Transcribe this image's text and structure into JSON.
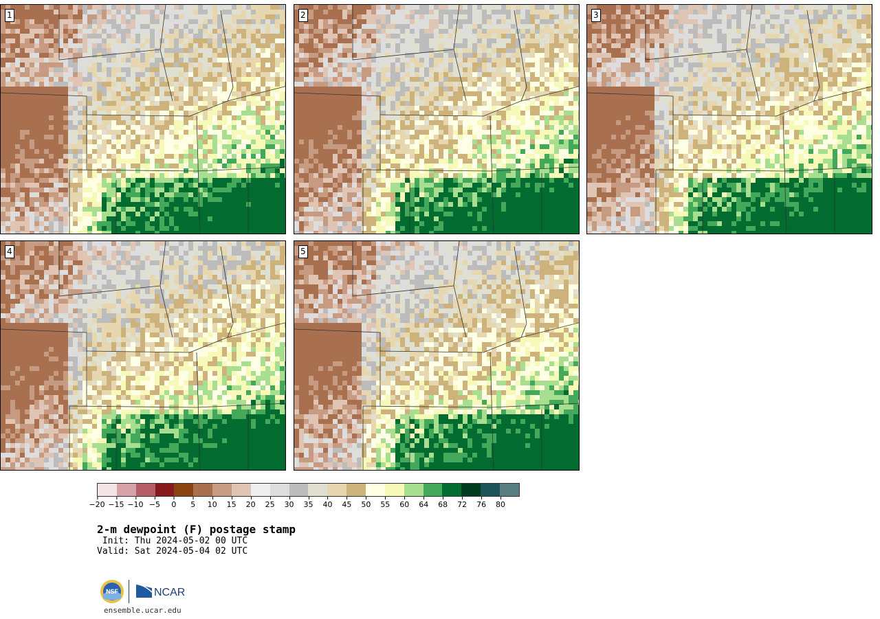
{
  "panels": [
    {
      "label": "1",
      "seed": 3
    },
    {
      "label": "2",
      "seed": 11
    },
    {
      "label": "3",
      "seed": 23
    },
    {
      "label": "4",
      "seed": 37
    },
    {
      "label": "5",
      "seed": 53
    }
  ],
  "colorbar": {
    "ticks": [
      "-20",
      "-15",
      "-10",
      "-5",
      "0",
      "5",
      "10",
      "15",
      "20",
      "25",
      "30",
      "35",
      "40",
      "45",
      "50",
      "55",
      "60",
      "64",
      "68",
      "72",
      "76",
      "80"
    ],
    "colors": [
      "#f3e4e6",
      "#d6a3ab",
      "#b55e68",
      "#861a1f",
      "#8b4312",
      "#a8704e",
      "#c79b81",
      "#e0c5b5",
      "#efefef",
      "#dddddd",
      "#bcbcbc",
      "#e0e0d2",
      "#e6d7b0",
      "#cdb27c",
      "#ffffe5",
      "#f6f9b7",
      "#a7de8f",
      "#44a85a",
      "#016b30",
      "#003b1f",
      "#1e5457",
      "#587e82"
    ]
  },
  "title": "2-m dewpoint (F) postage stamp",
  "init_line": " Init: Thu 2024-05-02 00 UTC",
  "valid_line": "Valid: Sat 2024-05-04 02 UTC",
  "logos": {
    "nsf": "NSF",
    "ncar": "NCAR"
  },
  "website": "ensemble.ucar.edu"
}
